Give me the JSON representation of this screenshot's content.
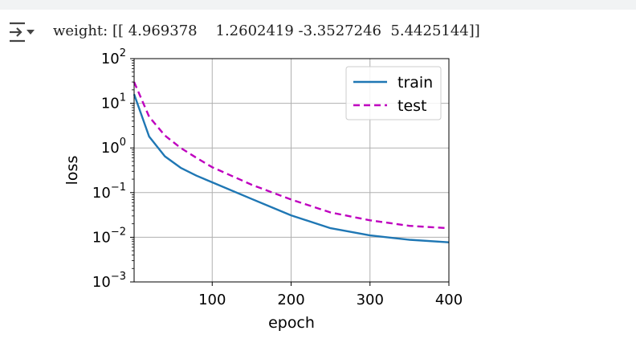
{
  "output": {
    "weight_line": "weight: [[ 4.969378    1.2602419 -3.3527246  5.4425144]]",
    "collapse_icon": "output-collapse-icon"
  },
  "chart_data": {
    "type": "line",
    "title": "",
    "xlabel": "epoch",
    "ylabel": "loss",
    "xlim": [
      1,
      400
    ],
    "ylim": [
      0.001,
      100
    ],
    "yscale": "log",
    "grid": true,
    "legend_placement": "top-right",
    "x_ticks": [
      "100",
      "200",
      "300",
      "400"
    ],
    "y_ticks": [
      {
        "base": "10",
        "exp": "2"
      },
      {
        "base": "10",
        "exp": "1"
      },
      {
        "base": "10",
        "exp": "0"
      },
      {
        "base": "10",
        "exp": "−1"
      },
      {
        "base": "10",
        "exp": "−2"
      },
      {
        "base": "10",
        "exp": "−3"
      }
    ],
    "series": [
      {
        "name": "train",
        "color": "#1f77b4",
        "style": "solid",
        "x": [
          1,
          20,
          40,
          60,
          80,
          100,
          150,
          200,
          250,
          300,
          350,
          400
        ],
        "y": [
          16,
          1.8,
          0.65,
          0.36,
          0.24,
          0.17,
          0.072,
          0.031,
          0.016,
          0.011,
          0.0088,
          0.0077
        ]
      },
      {
        "name": "test",
        "color": "#bf00bf",
        "style": "dashed",
        "x": [
          1,
          20,
          40,
          60,
          80,
          100,
          150,
          200,
          250,
          300,
          350,
          400
        ],
        "y": [
          30,
          5,
          1.9,
          1.0,
          0.6,
          0.37,
          0.15,
          0.07,
          0.036,
          0.024,
          0.018,
          0.016
        ]
      }
    ]
  }
}
